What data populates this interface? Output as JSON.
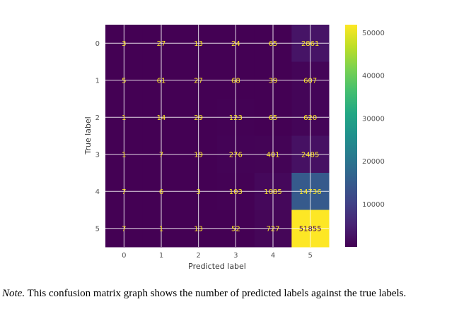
{
  "chart_data": {
    "type": "heatmap",
    "xlabel": "Predicted label",
    "ylabel": "True label",
    "x_categories": [
      "0",
      "1",
      "2",
      "3",
      "4",
      "5"
    ],
    "y_categories": [
      "0",
      "1",
      "2",
      "3",
      "4",
      "5"
    ],
    "matrix": [
      [
        3,
        27,
        13,
        24,
        65,
        2861
      ],
      [
        5,
        61,
        27,
        68,
        39,
        607
      ],
      [
        1,
        14,
        29,
        123,
        65,
        620
      ],
      [
        1,
        7,
        19,
        276,
        401,
        2485
      ],
      [
        7,
        6,
        3,
        103,
        1085,
        14736
      ],
      [
        7,
        1,
        13,
        52,
        727,
        51855
      ]
    ],
    "colorbar": {
      "ticks": [
        10000,
        20000,
        30000,
        40000,
        50000
      ],
      "vmin": 0,
      "vmax": 51855,
      "colormap": "viridis"
    },
    "grid": true,
    "colors": {
      "low": "#440154",
      "high": "#fde725",
      "text_low": "#fde725",
      "text_high": "#440154",
      "grid": "#ffffff"
    }
  },
  "caption": {
    "label": "Note.",
    "text": " This confusion matrix graph shows the number of predicted labels against the true labels."
  }
}
